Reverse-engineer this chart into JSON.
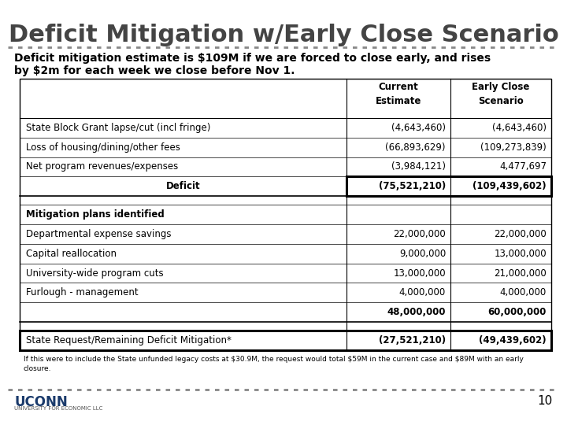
{
  "title": "Deficit Mitigation w/Early Close Scenario",
  "subtitle_line1": "Deficit mitigation estimate is $109M if we are forced to close early, and rises",
  "subtitle_line2": "by $2m for each week we close before Nov 1.",
  "col_header1": "Current\nEstimate",
  "col_header2": "Early Close\nScenario",
  "rows": [
    {
      "label": "State Block Grant lapse/cut (incl fringe)",
      "col1": "(4,643,460)",
      "col2": "(4,643,460)",
      "bold": false,
      "gap": false,
      "total": false
    },
    {
      "label": "Loss of housing/dining/other fees",
      "col1": "(66,893,629)",
      "col2": "(109,273,839)",
      "bold": false,
      "gap": false,
      "total": false
    },
    {
      "label": "Net program revenues/expenses",
      "col1": "(3,984,121)",
      "col2": "4,477,697",
      "bold": false,
      "gap": false,
      "total": false
    },
    {
      "label": "Deficit",
      "col1": "(75,521,210)",
      "col2": "(109,439,602)",
      "bold": true,
      "gap": false,
      "total": false,
      "deficit_box": true
    },
    {
      "label": "",
      "col1": "",
      "col2": "",
      "bold": false,
      "gap": true,
      "total": false
    },
    {
      "label": "Mitigation plans identified",
      "col1": "",
      "col2": "",
      "bold": true,
      "gap": false,
      "total": false
    },
    {
      "label": "Departmental expense savings",
      "col1": "22,000,000",
      "col2": "22,000,000",
      "bold": false,
      "gap": false,
      "total": false
    },
    {
      "label": "Capital reallocation",
      "col1": "9,000,000",
      "col2": "13,000,000",
      "bold": false,
      "gap": false,
      "total": false
    },
    {
      "label": "University-wide program cuts",
      "col1": "13,000,000",
      "col2": "21,000,000",
      "bold": false,
      "gap": false,
      "total": false
    },
    {
      "label": "Furlough - management",
      "col1": "4,000,000",
      "col2": "4,000,000",
      "bold": false,
      "gap": false,
      "total": false
    },
    {
      "label": "",
      "col1": "48,000,000",
      "col2": "60,000,000",
      "bold": true,
      "gap": false,
      "total": true
    },
    {
      "label": "",
      "col1": "",
      "col2": "",
      "bold": false,
      "gap": true,
      "total": false
    },
    {
      "label": "State Request/Remaining Deficit Mitigation*",
      "col1": "(27,521,210)",
      "col2": "(49,439,602)",
      "bold": false,
      "gap": false,
      "total": false,
      "state_req": true
    }
  ],
  "footnote": "If this were to include the State unfunded legacy costs at $30.9M, the request would total $59M in the current case and $89M with an early\nclosure.",
  "page_number": "10",
  "bg_color": "#ffffff",
  "title_color": "#444444",
  "text_color": "#000000",
  "dot_color": "#888888"
}
